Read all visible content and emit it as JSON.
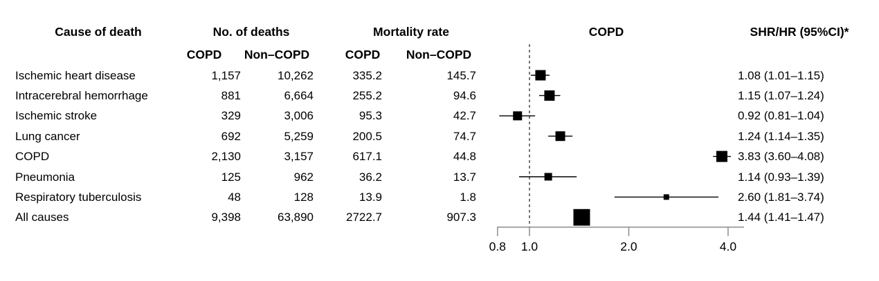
{
  "figure": {
    "background": "#ffffff",
    "text_color": "#000000",
    "axis_color": "#8c8c8c",
    "marker_color": "#000000",
    "reference_line_color": "#3c3c3c"
  },
  "table": {
    "headers": {
      "cause": "Cause of death",
      "deaths_group": "No. of deaths",
      "mortality_group": "Mortality rate",
      "plot_title": "COPD",
      "shr": "SHR/HR (95%CI)*",
      "sub_deaths_copd": "COPD",
      "sub_deaths_noncopd": "Non–COPD",
      "sub_rate_copd": "COPD",
      "sub_rate_noncopd": "Non–COPD"
    },
    "rows": [
      {
        "cause": "Ischemic heart disease",
        "deaths_copd": "1,157",
        "deaths_noncopd": "10,262",
        "rate_copd": "335.2",
        "rate_noncopd": "145.7",
        "ci_text": "1.08 (1.01–1.15)",
        "estimate": 1.08,
        "ci_low": 1.01,
        "ci_high": 1.15,
        "marker_size": 15
      },
      {
        "cause": "Intracerebral hemorrhage",
        "deaths_copd": "881",
        "deaths_noncopd": "6,664",
        "rate_copd": "255.2",
        "rate_noncopd": "94.6",
        "ci_text": "1.15 (1.07–1.24)",
        "estimate": 1.15,
        "ci_low": 1.07,
        "ci_high": 1.24,
        "marker_size": 15
      },
      {
        "cause": "Ischemic stroke",
        "deaths_copd": "329",
        "deaths_noncopd": "3,006",
        "rate_copd": "95.3",
        "rate_noncopd": "42.7",
        "ci_text": "0.92 (0.81–1.04)",
        "estimate": 0.92,
        "ci_low": 0.81,
        "ci_high": 1.04,
        "marker_size": 13
      },
      {
        "cause": "Lung cancer",
        "deaths_copd": "692",
        "deaths_noncopd": "5,259",
        "rate_copd": "200.5",
        "rate_noncopd": "74.7",
        "ci_text": "1.24 (1.14–1.35)",
        "estimate": 1.24,
        "ci_low": 1.14,
        "ci_high": 1.35,
        "marker_size": 14
      },
      {
        "cause": "COPD",
        "deaths_copd": "2,130",
        "deaths_noncopd": "3,157",
        "rate_copd": "617.1",
        "rate_noncopd": "44.8",
        "ci_text": "3.83 (3.60–4.08)",
        "estimate": 3.83,
        "ci_low": 3.6,
        "ci_high": 4.08,
        "marker_size": 16
      },
      {
        "cause": "Pneumonia",
        "deaths_copd": "125",
        "deaths_noncopd": "962",
        "rate_copd": "36.2",
        "rate_noncopd": "13.7",
        "ci_text": "1.14 (0.93–1.39)",
        "estimate": 1.14,
        "ci_low": 0.93,
        "ci_high": 1.39,
        "marker_size": 11
      },
      {
        "cause": "Respiratory tuberculosis",
        "deaths_copd": "48",
        "deaths_noncopd": "128",
        "rate_copd": "13.9",
        "rate_noncopd": "1.8",
        "ci_text": "2.60 (1.81–3.74)",
        "estimate": 2.6,
        "ci_low": 1.81,
        "ci_high": 3.74,
        "marker_size": 8
      },
      {
        "cause": "All causes",
        "deaths_copd": "9,398",
        "deaths_noncopd": "63,890",
        "rate_copd": "2722.7",
        "rate_noncopd": "907.3",
        "ci_text": "1.44 (1.41–1.47)",
        "estimate": 1.44,
        "ci_low": 1.41,
        "ci_high": 1.47,
        "marker_size": 24
      }
    ]
  },
  "chart_data": {
    "type": "forest",
    "scale": "log",
    "title": "COPD",
    "xticks": [
      0.8,
      1.0,
      2.0,
      4.0
    ],
    "xtick_labels": [
      "0.8",
      "1.0",
      "2.0",
      "4.0"
    ],
    "reference_line": 1.0,
    "xlim": [
      0.78,
      4.5
    ],
    "series": [
      {
        "label": "Ischemic heart disease",
        "estimate": 1.08,
        "ci_low": 1.01,
        "ci_high": 1.15
      },
      {
        "label": "Intracerebral hemorrhage",
        "estimate": 1.15,
        "ci_low": 1.07,
        "ci_high": 1.24
      },
      {
        "label": "Ischemic stroke",
        "estimate": 0.92,
        "ci_low": 0.81,
        "ci_high": 1.04
      },
      {
        "label": "Lung cancer",
        "estimate": 1.24,
        "ci_low": 1.14,
        "ci_high": 1.35
      },
      {
        "label": "COPD",
        "estimate": 3.83,
        "ci_low": 3.6,
        "ci_high": 4.08
      },
      {
        "label": "Pneumonia",
        "estimate": 1.14,
        "ci_low": 0.93,
        "ci_high": 1.39
      },
      {
        "label": "Respiratory tuberculosis",
        "estimate": 2.6,
        "ci_low": 1.81,
        "ci_high": 3.74
      },
      {
        "label": "All causes",
        "estimate": 1.44,
        "ci_low": 1.41,
        "ci_high": 1.47
      }
    ]
  }
}
